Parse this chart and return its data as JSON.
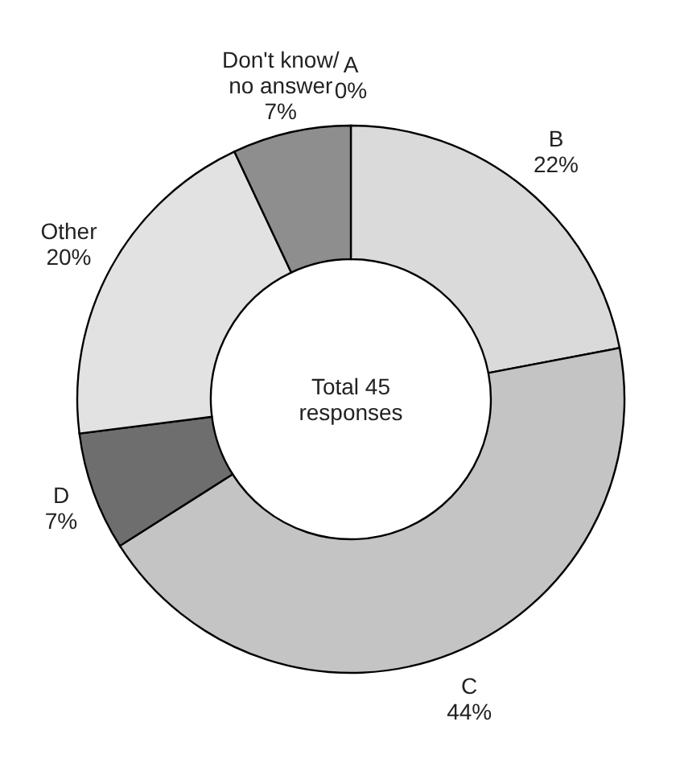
{
  "chart_data": {
    "type": "donut",
    "categories": [
      "A",
      "B",
      "C",
      "D",
      "Other",
      "Don't know/no answer"
    ],
    "values": [
      0,
      22,
      44,
      7,
      20,
      7
    ],
    "value_labels": [
      "0%",
      "22%",
      "44%",
      "7%",
      "20%",
      "7%"
    ],
    "colors": [
      "#a0a0a0",
      "#dadada",
      "#c4c4c4",
      "#6e6e6e",
      "#e2e2e2",
      "#8e8e8e"
    ],
    "annotations": [
      "Total 45 responses"
    ]
  }
}
